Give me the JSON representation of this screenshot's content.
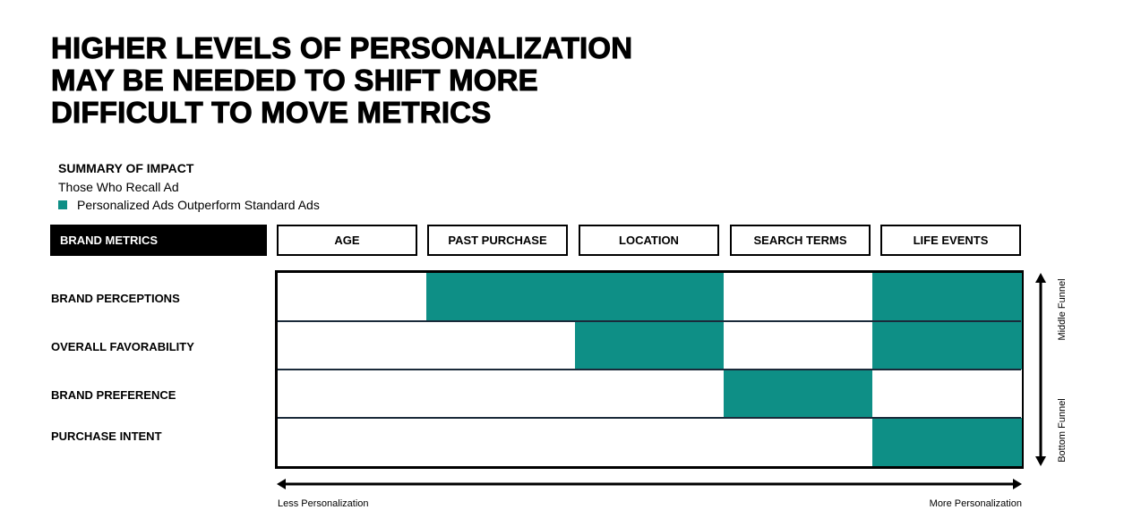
{
  "title_lines": [
    "HIGHER LEVELS OF PERSONALIZATION",
    "MAY BE NEEDED TO SHIFT MORE",
    "DIFFICULT TO MOVE METRICS"
  ],
  "summary": {
    "heading": "SUMMARY OF IMPACT",
    "subheading": "Those Who Recall Ad",
    "legend": "Personalized Ads Outperform Standard Ads"
  },
  "colors": {
    "positive": "#0e8f86",
    "neutral": "#ffffff"
  },
  "chart_data": {
    "type": "heatmap",
    "row_header": "BRAND METRICS",
    "columns": [
      "AGE",
      "PAST PURCHASE",
      "LOCATION",
      "SEARCH TERMS",
      "LIFE EVENTS"
    ],
    "rows": [
      "BRAND PERCEPTIONS",
      "OVERALL FAVORABILITY",
      "BRAND PREFERENCE",
      "PURCHASE INTENT"
    ],
    "values": [
      [
        0,
        1,
        1,
        0,
        1
      ],
      [
        0,
        0,
        1,
        0,
        1
      ],
      [
        0,
        0,
        0,
        1,
        0
      ],
      [
        0,
        0,
        0,
        0,
        1
      ]
    ],
    "x_axis": {
      "left": "Less Personalization",
      "right": "More Personalization"
    },
    "y_axis": {
      "top": "Middle Funnel",
      "bottom": "Bottom Funnel"
    }
  }
}
